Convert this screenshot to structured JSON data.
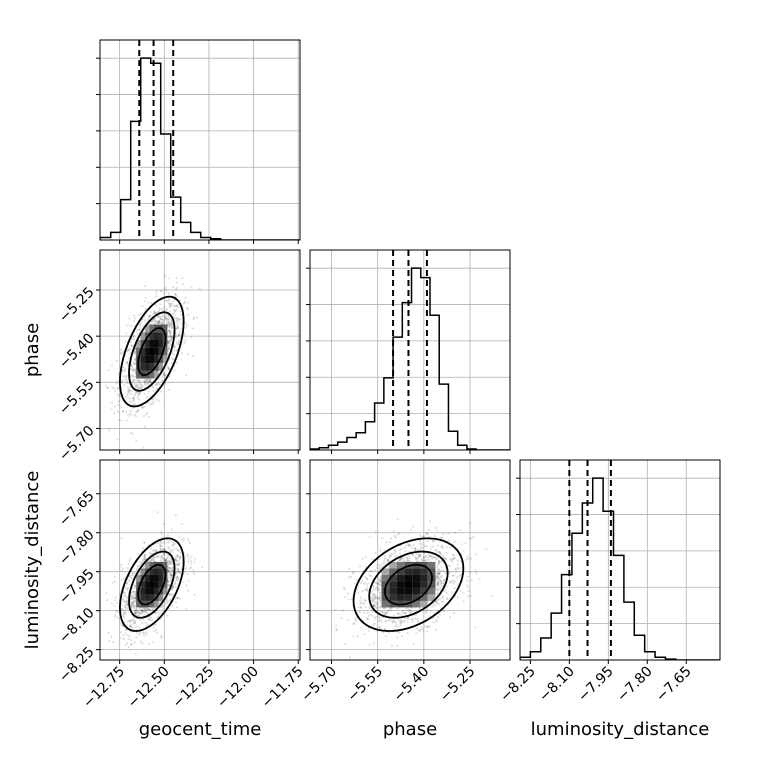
{
  "chart_data": {
    "type": "corner",
    "parameters": [
      "geocent_time",
      "phase",
      "luminosity_distance"
    ],
    "xlabels": [
      "geocent_time",
      "phase",
      "luminosity_distance"
    ],
    "ylabels": [
      "",
      "phase",
      "luminosity_distance"
    ],
    "ranges": {
      "geocent_time": [
        -12.86,
        -11.74
      ],
      "phase": [
        -5.77,
        -5.12
      ],
      "luminosity_distance": [
        -8.29,
        -7.52
      ]
    },
    "ticks": {
      "geocent_time": [
        -12.75,
        -12.5,
        -12.25,
        -12.0,
        -11.75
      ],
      "phase": [
        -5.7,
        -5.55,
        -5.4,
        -5.25
      ],
      "luminosity_distance": [
        -8.25,
        -8.1,
        -7.95,
        -7.8,
        -7.65
      ]
    },
    "tick_labels": {
      "geocent_time": [
        "−12.75",
        "−12.50",
        "−12.25",
        "−12.00",
        "−11.75"
      ],
      "phase": [
        "−5.70",
        "−5.55",
        "−5.40",
        "−5.25"
      ],
      "luminosity_distance": [
        "−8.25",
        "−8.10",
        "−7.95",
        "−7.80",
        "−7.65"
      ]
    },
    "grid": true,
    "histograms": [
      {
        "param": "geocent_time",
        "bin_edges": [
          -12.86,
          -12.8,
          -12.744,
          -12.688,
          -12.632,
          -12.576,
          -12.52,
          -12.464,
          -12.408,
          -12.352,
          -12.296,
          -12.24,
          -12.184,
          -12.128,
          -12.072,
          -12.016,
          -11.96,
          -11.904,
          -11.848,
          -11.792,
          -11.74
        ],
        "counts": [
          1,
          3,
          16,
          47,
          72,
          70,
          42,
          17,
          7,
          3,
          1,
          0.5,
          0,
          0,
          0,
          0,
          0,
          0,
          0,
          0
        ],
        "quantiles": [
          -12.64,
          -12.56,
          -12.45
        ]
      },
      {
        "param": "phase",
        "bin_edges": [
          -5.77,
          -5.74,
          -5.71,
          -5.68,
          -5.65,
          -5.62,
          -5.59,
          -5.56,
          -5.53,
          -5.5,
          -5.47,
          -5.44,
          -5.41,
          -5.38,
          -5.35,
          -5.32,
          -5.29,
          -5.26,
          -5.23,
          -5.2,
          -5.17,
          -5.12
        ],
        "counts": [
          0.3,
          0.7,
          1.5,
          2.5,
          4,
          5.5,
          9,
          15,
          23,
          36,
          47,
          58,
          55,
          43,
          21,
          6,
          1.5,
          0.3,
          0,
          0,
          0
        ],
        "quantiles": [
          -5.5,
          -5.45,
          -5.39
        ]
      },
      {
        "param": "luminosity_distance",
        "bin_edges": [
          -8.29,
          -8.25,
          -8.21,
          -8.17,
          -8.13,
          -8.09,
          -8.05,
          -8.01,
          -7.97,
          -7.93,
          -7.89,
          -7.85,
          -7.81,
          -7.77,
          -7.73,
          -7.69,
          -7.65,
          -7.61,
          -7.57,
          -7.52
        ],
        "counts": [
          1,
          3,
          8,
          17,
          31,
          46,
          57,
          66,
          54,
          38,
          21,
          9,
          3,
          1,
          0.3,
          0,
          0,
          0,
          0
        ],
        "quantiles": [
          -8.1,
          -8.03,
          -7.94
        ]
      }
    ],
    "scatter_2d": [
      {
        "x": "geocent_time",
        "y": "phase",
        "mean": [
          -12.57,
          -5.45
        ],
        "sd": [
          0.085,
          0.085
        ],
        "corr": 0.55
      },
      {
        "x": "geocent_time",
        "y": "luminosity_distance",
        "mean": [
          -12.57,
          -8.0
        ],
        "sd": [
          0.085,
          0.085
        ],
        "corr": 0.5
      },
      {
        "x": "phase",
        "y": "luminosity_distance",
        "mean": [
          -5.45,
          -8.0
        ],
        "sd": [
          0.085,
          0.085
        ],
        "corr": 0.35
      }
    ]
  }
}
